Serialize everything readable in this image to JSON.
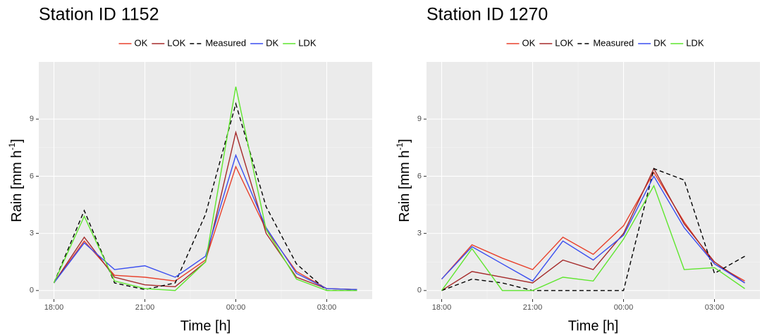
{
  "chart_data": [
    {
      "type": "line",
      "title": "Station ID 1152",
      "xlabel": "Time [h]",
      "ylabel": [
        "Rain [mm h",
        "-1",
        "]"
      ],
      "x": [
        18,
        19,
        20,
        21,
        22,
        23,
        24,
        25,
        26,
        27,
        28
      ],
      "xlim": [
        17.5,
        28.5
      ],
      "xticks": [
        {
          "value": 18,
          "label": "18:00"
        },
        {
          "value": 21,
          "label": "21:00"
        },
        {
          "value": 24,
          "label": "00:00"
        },
        {
          "value": 27,
          "label": "03:00"
        }
      ],
      "ylim": [
        -0.45,
        12
      ],
      "yticks": [
        0,
        3,
        6,
        9
      ],
      "grid": true,
      "legend": "top",
      "series": [
        {
          "name": "OK",
          "color": "#e8412c",
          "dash": false,
          "values": [
            0.4,
            2.6,
            0.8,
            0.7,
            0.5,
            1.6,
            6.5,
            3.2,
            1.0,
            0.1,
            0.05
          ]
        },
        {
          "name": "LOK",
          "color": "#a52a2a",
          "dash": false,
          "values": [
            0.4,
            2.8,
            0.7,
            0.3,
            0.2,
            1.5,
            8.3,
            3.0,
            0.7,
            0.1,
            0.05
          ]
        },
        {
          "name": "Measured",
          "color": "#000000",
          "dash": true,
          "values": [
            0.4,
            4.2,
            0.4,
            0.05,
            0.4,
            4.0,
            9.8,
            4.4,
            1.4,
            0.0,
            0.0
          ]
        },
        {
          "name": "DK",
          "color": "#3a4ef0",
          "dash": false,
          "values": [
            0.4,
            2.5,
            1.1,
            1.3,
            0.7,
            1.8,
            7.1,
            3.3,
            0.9,
            0.1,
            0.05
          ]
        },
        {
          "name": "LDK",
          "color": "#5ee62d",
          "dash": false,
          "values": [
            0.4,
            3.9,
            0.5,
            0.1,
            0.0,
            1.5,
            10.7,
            3.2,
            0.6,
            0.0,
            0.0
          ]
        }
      ]
    },
    {
      "type": "line",
      "title": "Station ID 1270",
      "xlabel": "Time [h]",
      "ylabel": [
        "Rain [mm h",
        "-1",
        "]"
      ],
      "x": [
        18,
        19,
        20,
        21,
        22,
        23,
        24,
        25,
        26,
        27,
        28
      ],
      "xlim": [
        17.5,
        28.5
      ],
      "xticks": [
        {
          "value": 18,
          "label": "18:00"
        },
        {
          "value": 21,
          "label": "21:00"
        },
        {
          "value": 24,
          "label": "00:00"
        },
        {
          "value": 27,
          "label": "03:00"
        }
      ],
      "ylim": [
        -0.45,
        12
      ],
      "yticks": [
        0,
        3,
        6,
        9
      ],
      "grid": true,
      "legend": "top",
      "series": [
        {
          "name": "OK",
          "color": "#e8412c",
          "dash": false,
          "values": [
            0.6,
            2.4,
            1.7,
            1.1,
            2.8,
            1.9,
            3.4,
            6.2,
            3.6,
            1.4,
            0.5
          ]
        },
        {
          "name": "LOK",
          "color": "#a52a2a",
          "dash": false,
          "values": [
            0.0,
            1.0,
            0.7,
            0.4,
            1.6,
            1.1,
            3.0,
            6.4,
            3.5,
            1.5,
            0.4
          ]
        },
        {
          "name": "Measured",
          "color": "#000000",
          "dash": true,
          "values": [
            0.0,
            0.6,
            0.4,
            0.0,
            0.0,
            0.0,
            0.0,
            6.4,
            5.8,
            0.9,
            1.8
          ]
        },
        {
          "name": "DK",
          "color": "#3a4ef0",
          "dash": false,
          "values": [
            0.6,
            2.3,
            1.4,
            0.5,
            2.6,
            1.6,
            2.9,
            6.0,
            3.3,
            1.4,
            0.4
          ]
        },
        {
          "name": "LDK",
          "color": "#5ee62d",
          "dash": false,
          "values": [
            0.0,
            2.2,
            0.0,
            0.0,
            0.7,
            0.5,
            2.7,
            5.5,
            1.1,
            1.2,
            0.1
          ]
        }
      ]
    }
  ]
}
